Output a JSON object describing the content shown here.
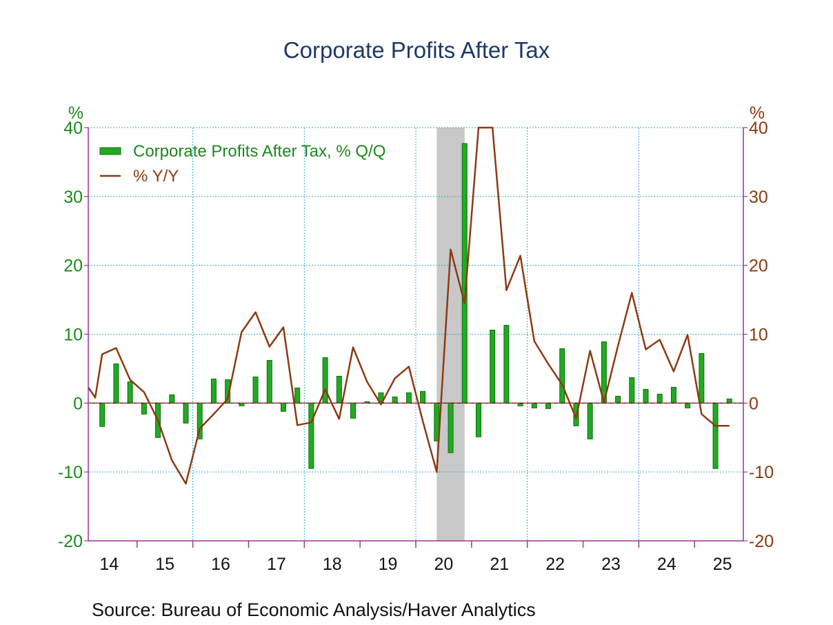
{
  "chart_data": {
    "type": "bar",
    "title": "Corporate Profits After Tax",
    "source": "Source:  Bureau of Economic Analysis/Haver Analytics",
    "left_axis": {
      "unit": "%",
      "ylim": [
        -20,
        40
      ],
      "ticks": [
        "40",
        "30",
        "20",
        "10",
        "0",
        "-10",
        "-20"
      ],
      "tick_values": [
        40,
        30,
        20,
        10,
        0,
        -10,
        -20
      ]
    },
    "right_axis": {
      "unit": "%",
      "ylim": [
        -20,
        40
      ],
      "ticks": [
        "40",
        "30",
        "20",
        "10",
        "0",
        "-10",
        "-20"
      ],
      "tick_values": [
        40,
        30,
        20,
        10,
        0,
        -10,
        -20
      ]
    },
    "x_axis": {
      "start_year": 2013.75,
      "end_year": 2025.5,
      "labels": [
        "14",
        "15",
        "16",
        "17",
        "18",
        "19",
        "20",
        "21",
        "22",
        "23",
        "24",
        "25"
      ],
      "label_years": [
        2014,
        2015,
        2016,
        2017,
        2018,
        2019,
        2020,
        2021,
        2022,
        2023,
        2024,
        2025
      ]
    },
    "grid": true,
    "legend_position": "top-left",
    "colors": {
      "bar": "#22aa22",
      "bar_edge": "#0b6e0b",
      "line": "#8b3a12",
      "grid": "#33aacc",
      "recession": "#c8c8c8",
      "axis": "#993399",
      "zero_line": "#cc2222"
    },
    "recession": {
      "start": 2020.0,
      "end": 2020.5
    },
    "series": [
      {
        "name": "Corporate Profits After Tax, % Q/Q",
        "kind": "bar",
        "axis": "left",
        "x": [
          2014.0,
          2014.25,
          2014.5,
          2014.75,
          2015.0,
          2015.25,
          2015.5,
          2015.75,
          2016.0,
          2016.25,
          2016.5,
          2016.75,
          2017.0,
          2017.25,
          2017.5,
          2017.75,
          2018.0,
          2018.25,
          2018.5,
          2018.75,
          2019.0,
          2019.25,
          2019.5,
          2019.75,
          2020.0,
          2020.25,
          2020.5,
          2020.75,
          2021.0,
          2021.25,
          2021.5,
          2021.75,
          2022.0,
          2022.25,
          2022.5,
          2022.75,
          2023.0,
          2023.25,
          2023.5,
          2023.75,
          2024.0,
          2024.25,
          2024.5,
          2024.75,
          2025.0,
          2025.25
        ],
        "values": [
          -3.4,
          5.7,
          3.1,
          -1.6,
          -5.0,
          1.2,
          -2.9,
          -5.2,
          3.5,
          3.4,
          -0.4,
          3.8,
          6.2,
          -1.2,
          2.2,
          -9.5,
          6.6,
          3.9,
          -2.2,
          0.2,
          1.5,
          0.9,
          1.5,
          1.7,
          -5.5,
          -7.2,
          37.7,
          -4.9,
          10.6,
          11.3,
          -0.4,
          -0.7,
          -0.8,
          7.9,
          -3.3,
          -5.2,
          8.9,
          1.0,
          3.7,
          2.0,
          1.3,
          2.3,
          -0.7,
          7.2,
          -9.5,
          0.6
        ]
      },
      {
        "name": "% Y/Y",
        "kind": "line",
        "axis": "right",
        "x": [
          2013.75,
          2013.875,
          2014.0,
          2014.25,
          2014.5,
          2014.75,
          2015.0,
          2015.25,
          2015.5,
          2015.75,
          2016.0,
          2016.25,
          2016.5,
          2016.75,
          2017.0,
          2017.25,
          2017.5,
          2017.75,
          2018.0,
          2018.25,
          2018.5,
          2018.75,
          2019.0,
          2019.25,
          2019.5,
          2019.75,
          2020.0,
          2020.25,
          2020.5,
          2020.75,
          2021.0,
          2021.25,
          2021.5,
          2021.75,
          2022.0,
          2022.25,
          2022.5,
          2022.75,
          2023.0,
          2023.25,
          2023.5,
          2023.75,
          2024.0,
          2024.25,
          2024.5,
          2024.75,
          2025.0,
          2025.25
        ],
        "values": [
          2.3,
          0.8,
          7.1,
          8.0,
          3.4,
          1.6,
          -2.5,
          -8.3,
          -11.7,
          -3.7,
          -1.6,
          0.6,
          10.3,
          13.2,
          8.2,
          11.0,
          -3.2,
          -2.8,
          2.0,
          -2.3,
          8.1,
          3.1,
          -0.2,
          3.6,
          5.3,
          -2.6,
          -10.0,
          22.3,
          14.5,
          40.0,
          40.0,
          16.4,
          21.4,
          9.0,
          5.7,
          2.7,
          -2.2,
          7.6,
          0.1,
          8.3,
          16.0,
          7.8,
          9.2,
          4.6,
          9.9,
          -1.6,
          -3.3,
          -3.3
        ]
      }
    ]
  }
}
